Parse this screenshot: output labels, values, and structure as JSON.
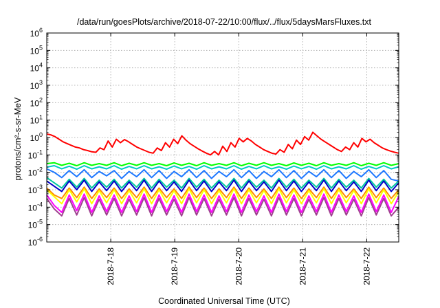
{
  "chart_data": {
    "type": "line",
    "title": "/data/run/goesPlots/archive/2018-07-22/10:00/flux/../flux/5daysMarsFluxes.txt",
    "xlabel": "Coordinated Universal Time (UTC)",
    "ylabel": "protons/cm²-s-sr-MeV",
    "yscale": "log",
    "ylim_exponents": [
      -6,
      6
    ],
    "ytick_exponents": [
      -6,
      -5,
      -4,
      -3,
      -2,
      -1,
      0,
      1,
      2,
      3,
      4,
      5,
      6
    ],
    "xlim": [
      "2018-07-17T00:00",
      "2018-07-22T12:00"
    ],
    "xtick_labels": [
      "2018-7-18",
      "2018-7-19",
      "2018-7-20",
      "2018-7-21",
      "2018-7-22"
    ],
    "xticks": [
      "2018-07-18T00:00",
      "2018-07-19T00:00",
      "2018-07-20T00:00",
      "2018-07-21T00:00",
      "2018-07-22T00:00"
    ],
    "grid": true,
    "legend": "none",
    "series": [
      {
        "color": "#ff0000",
        "log10_values": [
          0.2,
          0.15,
          0.05,
          -0.1,
          -0.25,
          -0.35,
          -0.45,
          -0.55,
          -0.6,
          -0.7,
          -0.75,
          -0.82,
          -0.85,
          -0.6,
          -0.7,
          -0.2,
          -0.55,
          -0.1,
          -0.3,
          -0.12,
          -0.25,
          -0.4,
          -0.55,
          -0.65,
          -0.75,
          -0.85,
          -0.9,
          -0.6,
          -0.75,
          -0.3,
          -0.55,
          -0.1,
          -0.35,
          0.1,
          -0.15,
          -0.35,
          -0.5,
          -0.65,
          -0.78,
          -0.9,
          -1.0,
          -0.8,
          -1.0,
          -0.5,
          -0.8,
          -0.3,
          -0.55,
          -0.05,
          -0.25,
          -0.05,
          -0.2,
          -0.4,
          -0.55,
          -0.7,
          -0.8,
          -0.9,
          -0.95,
          -0.7,
          -0.85,
          -0.4,
          -0.65,
          -0.15,
          -0.4,
          0.05,
          -0.15,
          0.3,
          0.1,
          -0.1,
          -0.25,
          -0.4,
          -0.55,
          -0.7,
          -0.8,
          -0.55,
          -0.7,
          -0.3,
          -0.55,
          -0.05,
          -0.25,
          -0.1,
          -0.3,
          -0.45,
          -0.6,
          -0.7,
          -0.78,
          -0.85,
          -0.9
        ]
      },
      {
        "color": "#00ff00",
        "log10_values": [
          -1.5,
          -1.45,
          -1.6,
          -1.48,
          -1.62,
          -1.45,
          -1.6,
          -1.5,
          -1.6,
          -1.45,
          -1.62,
          -1.48,
          -1.6,
          -1.45,
          -1.6,
          -1.5,
          -1.62,
          -1.46,
          -1.6,
          -1.48,
          -1.62,
          -1.45,
          -1.6,
          -1.5,
          -1.6,
          -1.45,
          -1.62,
          -1.48,
          -1.6,
          -1.45,
          -1.6,
          -1.5,
          -1.62,
          -1.46,
          -1.6,
          -1.48,
          -1.62,
          -1.45,
          -1.6,
          -1.5,
          -1.6,
          -1.45,
          -1.62,
          -1.48,
          -1.6,
          -1.45,
          -1.6,
          -1.5
        ]
      },
      {
        "color": "#00c8c8",
        "log10_values": [
          -1.7,
          -1.62,
          -1.8,
          -1.65,
          -1.82,
          -1.62,
          -1.8,
          -1.68,
          -1.8,
          -1.62,
          -1.82,
          -1.66,
          -1.8,
          -1.62,
          -1.8,
          -1.68,
          -1.82,
          -1.64,
          -1.8,
          -1.66,
          -1.82,
          -1.62,
          -1.8,
          -1.68,
          -1.8,
          -1.62,
          -1.82,
          -1.66,
          -1.8,
          -1.62,
          -1.8,
          -1.68,
          -1.82,
          -1.64,
          -1.8,
          -1.66,
          -1.82,
          -1.62,
          -1.8,
          -1.68,
          -1.8,
          -1.62,
          -1.82,
          -1.66,
          -1.8,
          -1.62,
          -1.8,
          -1.68
        ]
      },
      {
        "color": "#1e78ff",
        "log10_values": [
          -1.8,
          -2.0,
          -2.3,
          -1.9,
          -2.25,
          -1.85,
          -2.3,
          -1.95,
          -2.2,
          -1.9,
          -2.35,
          -1.95,
          -2.25,
          -1.85,
          -2.3,
          -1.9,
          -2.35,
          -1.95,
          -2.25,
          -1.85,
          -2.3,
          -1.9,
          -2.35,
          -1.95,
          -2.25,
          -1.85,
          -2.3,
          -1.9,
          -2.35,
          -1.95,
          -2.25,
          -1.85,
          -2.3,
          -1.9,
          -2.35,
          -1.95,
          -2.25,
          -1.85,
          -2.3,
          -1.9,
          -2.35,
          -1.95,
          -2.25,
          -1.85,
          -2.3,
          -1.9,
          -2.4,
          -2.5
        ]
      },
      {
        "color": "#00c8a0",
        "log10_values": [
          -2.3,
          -2.6,
          -2.9,
          -2.4,
          -2.85,
          -2.35,
          -2.9,
          -2.45,
          -2.85,
          -2.4,
          -2.9,
          -2.45,
          -2.85,
          -2.35,
          -2.9,
          -2.4,
          -2.85,
          -2.45,
          -2.9,
          -2.35,
          -2.85,
          -2.4,
          -2.9,
          -2.45,
          -2.85,
          -2.35,
          -2.9,
          -2.4,
          -2.85,
          -2.45,
          -2.9,
          -2.35,
          -2.85,
          -2.4,
          -2.9,
          -2.45,
          -2.85,
          -2.35,
          -2.9,
          -2.4,
          -2.85,
          -2.45,
          -2.9,
          -2.35,
          -2.85,
          -2.4,
          -2.9,
          -2.5
        ]
      },
      {
        "color": "#0000c8",
        "log10_values": [
          -2.5,
          -2.8,
          -3.1,
          -2.5,
          -3.0,
          -2.45,
          -3.1,
          -2.55,
          -3.05,
          -2.5,
          -3.1,
          -2.55,
          -3.05,
          -2.45,
          -3.1,
          -2.5,
          -3.05,
          -2.55,
          -3.1,
          -2.45,
          -3.05,
          -2.5,
          -3.1,
          -2.55,
          -3.05,
          -2.45,
          -3.1,
          -2.5,
          -3.05,
          -2.55,
          -3.1,
          -2.45,
          -3.05,
          -2.5,
          -3.1,
          -2.55,
          -3.05,
          -2.45,
          -3.1,
          -2.5,
          -3.05,
          -2.55,
          -3.1,
          -2.45,
          -3.05,
          -2.5,
          -3.1,
          -2.6
        ]
      },
      {
        "color": "#ff8c00",
        "log10_values": [
          -2.9,
          -3.3,
          -3.5,
          -2.9,
          -3.45,
          -2.85,
          -3.5,
          -2.95,
          -3.45,
          -2.9,
          -3.5,
          -2.95,
          -3.45,
          -2.85,
          -3.5,
          -2.9,
          -3.45,
          -2.95,
          -3.5,
          -2.85,
          -3.45,
          -2.9,
          -3.5,
          -2.95,
          -3.45,
          -2.85,
          -3.5,
          -2.9,
          -3.45,
          -2.95,
          -3.5,
          -2.85,
          -3.45,
          -2.9,
          -3.5,
          -2.95,
          -3.45,
          -2.85,
          -3.5,
          -2.9,
          -3.45,
          -2.95,
          -3.5,
          -2.85,
          -3.45,
          -2.9,
          -3.5,
          -3.0
        ]
      },
      {
        "color": "#ffff00",
        "log10_values": [
          -3.0,
          -3.4,
          -3.8,
          -3.0,
          -3.7,
          -2.95,
          -3.8,
          -3.05,
          -3.75,
          -3.0,
          -3.8,
          -3.05,
          -3.75,
          -2.95,
          -3.8,
          -3.0,
          -3.75,
          -3.05,
          -3.8,
          -2.95,
          -3.75,
          -3.0,
          -3.8,
          -3.05,
          -3.75,
          -2.95,
          -3.8,
          -3.0,
          -3.75,
          -3.05,
          -3.8,
          -2.95,
          -3.75,
          -3.0,
          -3.8,
          -3.05,
          -3.75,
          -2.95,
          -3.8,
          -3.0,
          -3.75,
          -3.05,
          -3.8,
          -2.95,
          -3.75,
          -3.0,
          -3.8,
          -3.1
        ]
      },
      {
        "color": "#ff00ff",
        "log10_values": [
          -3.3,
          -3.9,
          -4.3,
          -3.3,
          -4.2,
          -3.25,
          -4.3,
          -3.35,
          -4.25,
          -3.3,
          -4.3,
          -3.35,
          -4.25,
          -3.25,
          -4.3,
          -3.3,
          -4.25,
          -3.35,
          -4.3,
          -3.25,
          -4.25,
          -3.3,
          -4.3,
          -3.35,
          -4.25,
          -3.25,
          -4.3,
          -3.3,
          -4.25,
          -3.35,
          -4.3,
          -3.25,
          -4.25,
          -3.3,
          -4.3,
          -3.35,
          -4.25,
          -3.25,
          -4.3,
          -3.3,
          -4.25,
          -3.35,
          -4.3,
          -3.25,
          -4.25,
          -3.3,
          -4.3,
          -3.4
        ]
      },
      {
        "color": "#a04090",
        "log10_values": [
          -3.5,
          -4.1,
          -4.5,
          -3.5,
          -4.45,
          -3.45,
          -4.5,
          -3.55,
          -4.45,
          -3.5,
          -4.5,
          -3.55,
          -4.45,
          -3.45,
          -4.5,
          -3.5,
          -4.45,
          -3.55,
          -4.5,
          -3.45,
          -4.45,
          -3.5,
          -4.5,
          -3.55,
          -4.45,
          -3.45,
          -4.5,
          -3.5,
          -4.45,
          -3.55,
          -4.5,
          -3.45,
          -4.45,
          -3.5,
          -4.5,
          -3.55,
          -4.45,
          -3.45,
          -4.5,
          -3.5,
          -4.45,
          -3.55,
          -4.5,
          -3.45,
          -4.45,
          -3.5,
          -4.5,
          -4.0
        ]
      }
    ]
  }
}
